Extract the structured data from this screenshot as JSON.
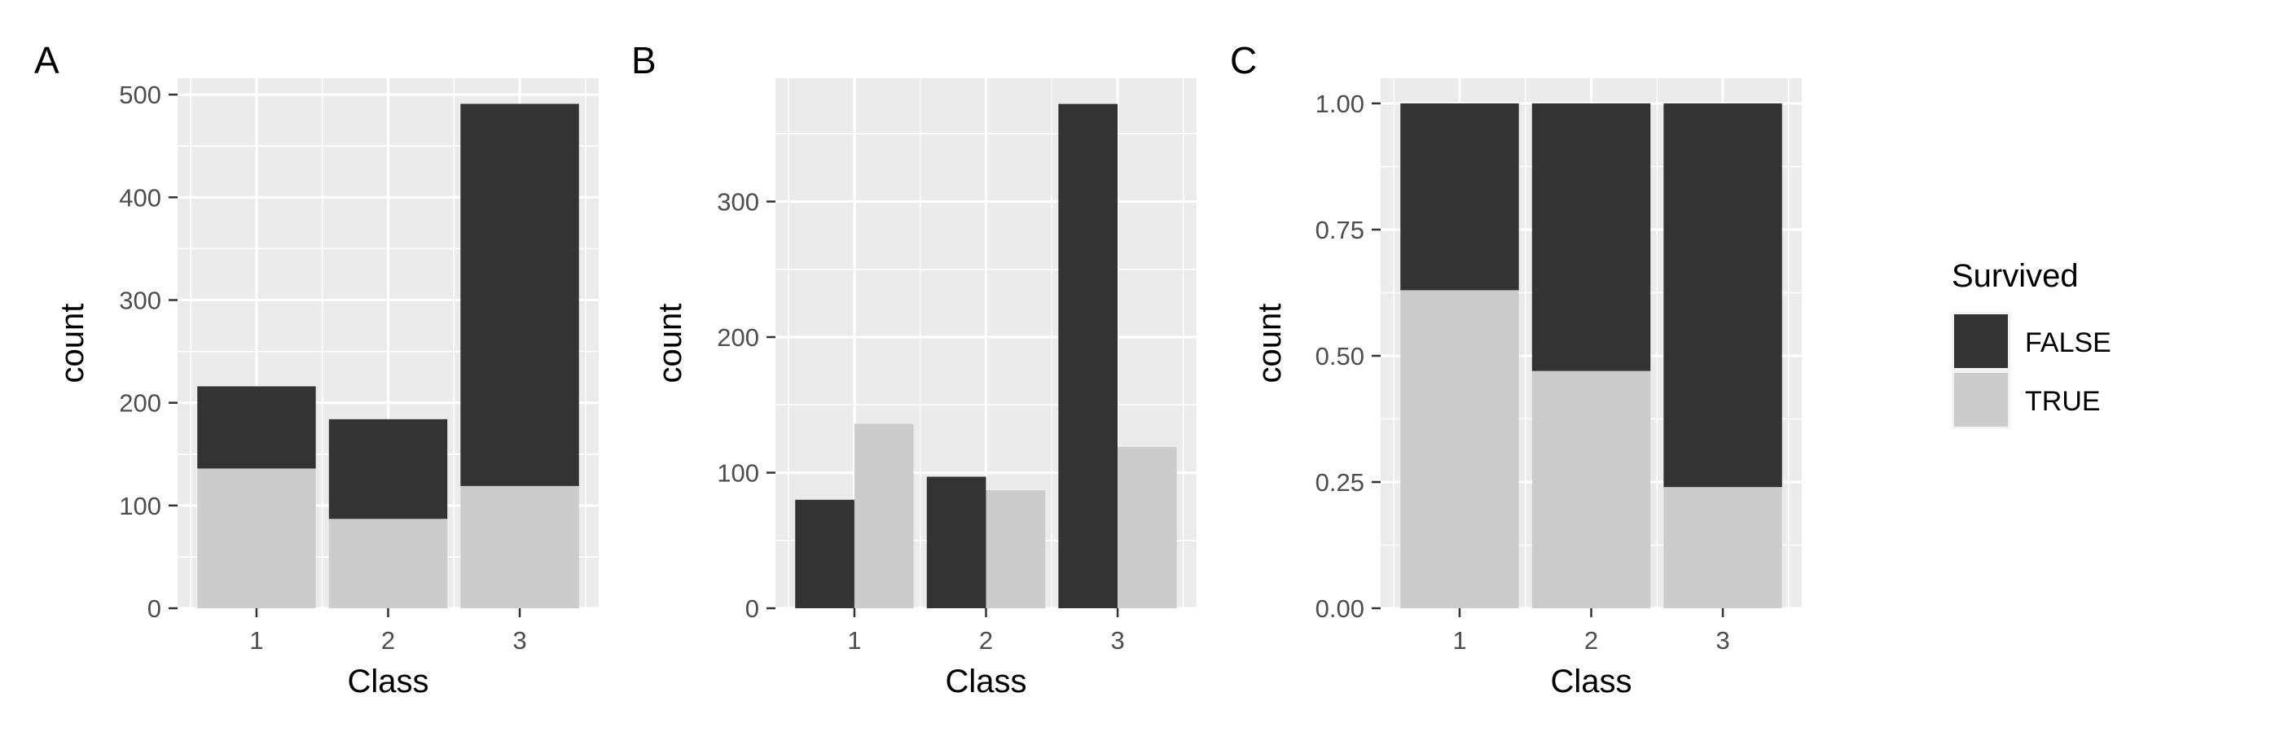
{
  "colors": {
    "panel_background": "#ebebeb",
    "grid": "#ffffff",
    "false_fill": "#333333",
    "true_fill": "#cccccc",
    "axis_text": "#4d4d4d",
    "title_text": "#000000"
  },
  "legend": {
    "title": "Survived",
    "position": "right",
    "entries": [
      {
        "label": "FALSE",
        "color": "#333333"
      },
      {
        "label": "TRUE",
        "color": "#cccccc"
      }
    ]
  },
  "chart_data": [
    {
      "tag": "A",
      "type": "bar",
      "stacking": "stacked",
      "xlabel": "Class",
      "ylabel": "count",
      "categories": [
        "1",
        "2",
        "3"
      ],
      "ylim": [
        0,
        516
      ],
      "yticks": [
        0,
        100,
        200,
        300,
        400,
        500
      ],
      "ytick_labels": [
        "0",
        "100",
        "200",
        "300",
        "400",
        "500"
      ],
      "grid": true,
      "series": [
        {
          "name": "FALSE",
          "values": [
            80,
            97,
            372
          ]
        },
        {
          "name": "TRUE",
          "values": [
            136,
            87,
            119
          ]
        }
      ]
    },
    {
      "tag": "B",
      "type": "bar",
      "stacking": "dodge",
      "xlabel": "Class",
      "ylabel": "count",
      "categories": [
        "1",
        "2",
        "3"
      ],
      "ylim": [
        0,
        391
      ],
      "yticks": [
        0,
        100,
        200,
        300
      ],
      "ytick_labels": [
        "0",
        "100",
        "200",
        "300"
      ],
      "grid": true,
      "series": [
        {
          "name": "FALSE",
          "values": [
            80,
            97,
            372
          ]
        },
        {
          "name": "TRUE",
          "values": [
            136,
            87,
            119
          ]
        }
      ]
    },
    {
      "tag": "C",
      "type": "bar",
      "stacking": "fill",
      "xlabel": "Class",
      "ylabel": "count",
      "categories": [
        "1",
        "2",
        "3"
      ],
      "ylim": [
        0,
        1.05
      ],
      "yticks": [
        0,
        0.25,
        0.5,
        0.75,
        1.0
      ],
      "ytick_labels": [
        "0.00",
        "0.25",
        "0.50",
        "0.75",
        "1.00"
      ],
      "grid": true,
      "series": [
        {
          "name": "FALSE",
          "values": [
            0.37,
            0.53,
            0.76
          ]
        },
        {
          "name": "TRUE",
          "values": [
            0.63,
            0.47,
            0.24
          ]
        }
      ]
    }
  ]
}
